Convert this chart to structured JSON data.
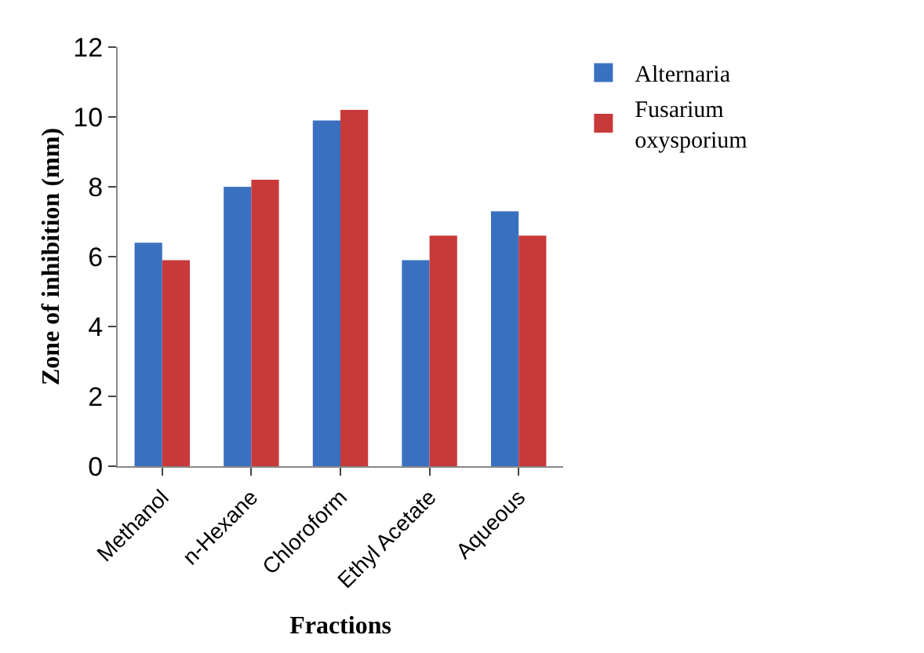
{
  "chart_data": {
    "type": "bar",
    "xlabel": "Fractions",
    "ylabel": "Zone of inhibition (mm)",
    "categories": [
      "Methanol",
      "n-Hexane",
      "Chloroform",
      "Ethyl Acetate",
      "Aqueous"
    ],
    "series": [
      {
        "name": "Alternaria",
        "color": "#3a70c0",
        "values": [
          6.4,
          8.0,
          9.9,
          5.9,
          7.3
        ]
      },
      {
        "name": "Fusarium oxysporium",
        "color": "#c8393a",
        "values": [
          5.9,
          8.2,
          10.2,
          6.6,
          6.6
        ]
      }
    ],
    "ylim": [
      0,
      12
    ],
    "yticks": [
      0,
      2,
      4,
      6,
      8,
      10,
      12
    ],
    "grid": false,
    "legend": "right"
  }
}
